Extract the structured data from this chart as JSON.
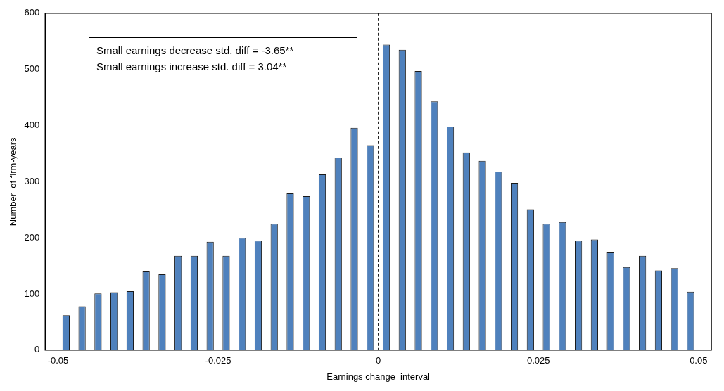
{
  "chart_data": {
    "type": "histogram",
    "xlabel": "Earnings change  interval",
    "ylabel": "Number  of firm-years",
    "bins": [
      -0.05,
      -0.0475,
      -0.045,
      -0.0425,
      -0.04,
      -0.0375,
      -0.035,
      -0.0325,
      -0.03,
      -0.0275,
      -0.025,
      -0.0225,
      -0.02,
      -0.0175,
      -0.015,
      -0.0125,
      -0.01,
      -0.0075,
      -0.005,
      -0.0025,
      0,
      0.0025,
      0.005,
      0.0075,
      0.01,
      0.0125,
      0.015,
      0.0175,
      0.02,
      0.0225,
      0.025,
      0.0275,
      0.03,
      0.0325,
      0.035,
      0.0375,
      0.04,
      0.0425,
      0.045,
      0.0475,
      0.05
    ],
    "values": [
      62,
      78,
      101,
      103,
      105,
      140,
      135,
      168,
      168,
      193,
      168,
      200,
      195,
      225,
      279,
      274,
      313,
      343,
      396,
      365,
      544,
      535,
      497,
      443,
      398,
      352,
      337,
      318,
      298,
      251,
      225,
      228,
      195,
      197,
      174,
      148,
      168,
      142,
      146,
      104
    ],
    "color": "#4f81bd",
    "xlim": [
      -0.052,
      0.052
    ],
    "xticks": [
      -0.05,
      -0.025,
      0,
      0.025,
      0.05
    ],
    "ylim": [
      0,
      600
    ],
    "yticks": [
      0,
      100,
      200,
      300,
      400,
      500,
      600
    ],
    "ref_lines": [
      {
        "axis": "x",
        "value": 0,
        "line_style": "dashed",
        "color": "#000000"
      }
    ],
    "annotations": [
      "Small earnings decrease std. diff = -3.65**",
      "Small earnings increase std. diff = 3.04**"
    ],
    "grid": false,
    "legend": false
  }
}
